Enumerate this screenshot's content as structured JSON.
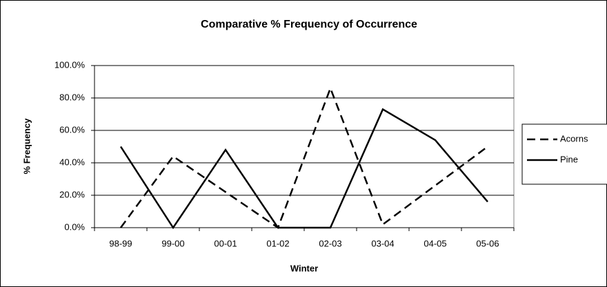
{
  "chart_data": {
    "type": "line",
    "title": "Comparative % Frequency of Occurrence",
    "x_label": "Winter",
    "y_label": "% Frequency",
    "categories": [
      "98-99",
      "99-00",
      "00-01",
      "01-02",
      "02-03",
      "03-04",
      "04-05",
      "05-06"
    ],
    "series": [
      {
        "name": "Acorns",
        "color": "#000000",
        "dash": "dashed",
        "values": [
          0,
          44,
          22,
          0,
          86,
          2,
          26,
          50
        ]
      },
      {
        "name": "Pine",
        "color": "#000000",
        "dash": "solid",
        "values": [
          50,
          0,
          48,
          0,
          0,
          73,
          54,
          16
        ]
      }
    ],
    "ylim": [
      0,
      100
    ],
    "yticks": [
      {
        "value": 0,
        "label": "0.0%"
      },
      {
        "value": 20,
        "label": "20.0%"
      },
      {
        "value": 40,
        "label": "40.0%"
      },
      {
        "value": 60,
        "label": "60.0%"
      },
      {
        "value": 80,
        "label": "80.0%"
      },
      {
        "value": 100,
        "label": "100.0%"
      }
    ],
    "grid": true,
    "legend": "right"
  }
}
